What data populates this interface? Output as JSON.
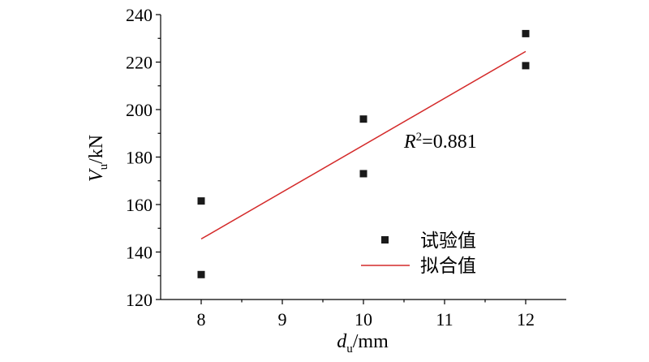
{
  "chart_data": {
    "type": "scatter",
    "xlabel": {
      "main": "d",
      "sub": "u",
      "unit": "/mm"
    },
    "ylabel": {
      "main": "V",
      "sub": "u",
      "unit": "/kN"
    },
    "xlim": [
      7.5,
      12.5
    ],
    "ylim": [
      120,
      240
    ],
    "xticks": [
      8,
      9,
      10,
      11,
      12
    ],
    "yticks": [
      120,
      140,
      160,
      180,
      200,
      220,
      240
    ],
    "x_tick_labels": [
      "8",
      "9",
      "10",
      "11",
      "12"
    ],
    "y_tick_labels": [
      "120",
      "140",
      "160",
      "180",
      "200",
      "220",
      "240"
    ],
    "grid": false,
    "legend_position": "bottom-right",
    "series": [
      {
        "name": "试验值",
        "kind": "scatter",
        "marker": "square",
        "color": "#1a1a1a",
        "points": [
          {
            "x": 8,
            "y": 161.5
          },
          {
            "x": 8,
            "y": 130.5
          },
          {
            "x": 10,
            "y": 196
          },
          {
            "x": 10,
            "y": 173
          },
          {
            "x": 12,
            "y": 232
          },
          {
            "x": 12,
            "y": 218.5
          }
        ]
      },
      {
        "name": "拟合值",
        "kind": "line",
        "color": "#d42a2a",
        "points": [
          {
            "x": 8,
            "y": 145.5
          },
          {
            "x": 12,
            "y": 224.5
          }
        ]
      }
    ],
    "annotation": {
      "prefix": "R",
      "sup": "2",
      "value": "=0.881"
    }
  }
}
